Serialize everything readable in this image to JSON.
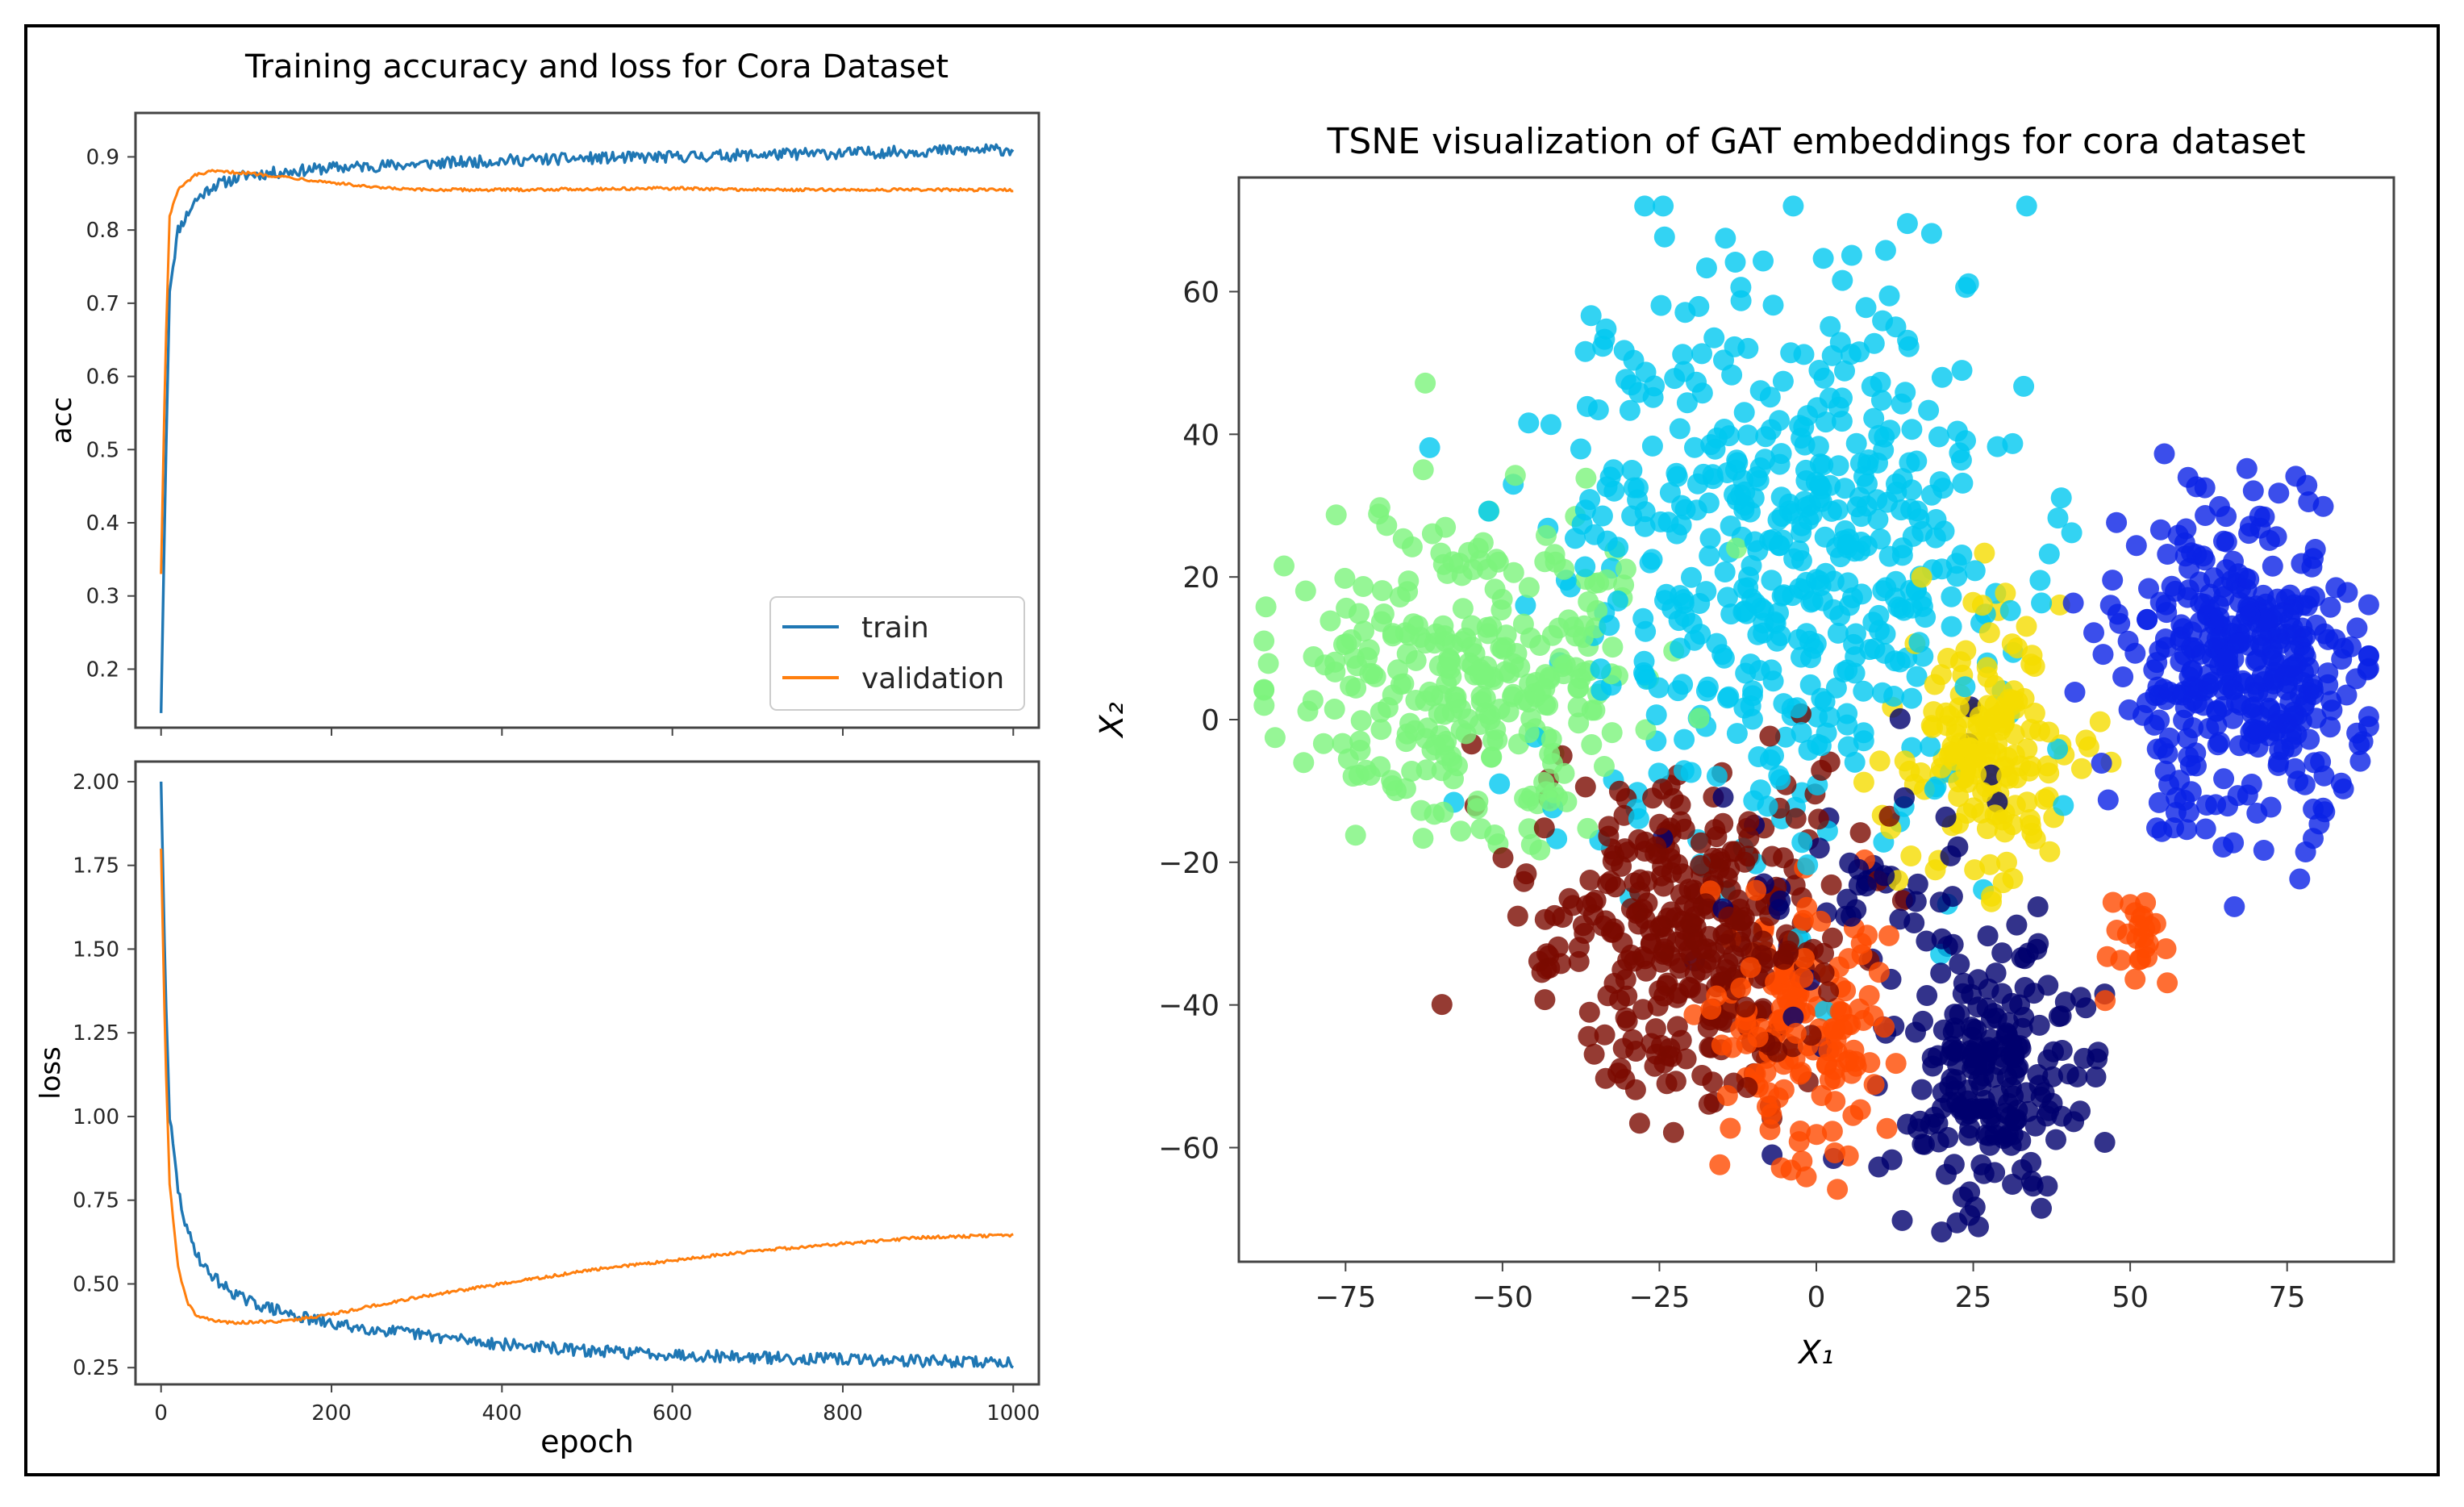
{
  "chart_data": [
    {
      "type": "line",
      "title": "Training accuracy and loss for Cora Dataset",
      "ylabel": "acc",
      "xlim": [
        -30,
        1030
      ],
      "ylim": [
        0.12,
        0.96
      ],
      "x_ticks": [
        0,
        200,
        400,
        600,
        800,
        1000
      ],
      "y_ticks": [
        "0.2",
        "0.3",
        "0.4",
        "0.5",
        "0.6",
        "0.7",
        "0.8",
        "0.9"
      ],
      "legend": "lower-right",
      "series": [
        {
          "name": "train",
          "color": "#1f77b4",
          "x": [
            0,
            5,
            10,
            20,
            40,
            60,
            100,
            150,
            200,
            300,
            400,
            500,
            600,
            700,
            800,
            900,
            1000
          ],
          "y": [
            0.14,
            0.45,
            0.72,
            0.8,
            0.84,
            0.86,
            0.875,
            0.88,
            0.885,
            0.89,
            0.895,
            0.898,
            0.9,
            0.903,
            0.905,
            0.908,
            0.91
          ]
        },
        {
          "name": "validation",
          "color": "#ff7f0e",
          "x": [
            0,
            5,
            10,
            20,
            40,
            60,
            100,
            150,
            200,
            250,
            300,
            400,
            500,
            600,
            700,
            800,
            900,
            1000
          ],
          "y": [
            0.33,
            0.62,
            0.82,
            0.855,
            0.875,
            0.88,
            0.878,
            0.872,
            0.865,
            0.858,
            0.855,
            0.855,
            0.856,
            0.857,
            0.855,
            0.855,
            0.855,
            0.855
          ]
        }
      ]
    },
    {
      "type": "line",
      "xlabel": "epoch",
      "ylabel": "loss",
      "xlim": [
        -30,
        1030
      ],
      "ylim": [
        0.2,
        2.06
      ],
      "x_ticks": [
        "0",
        "200",
        "400",
        "600",
        "800",
        "1000"
      ],
      "y_ticks": [
        "0.25",
        "0.50",
        "0.75",
        "1.00",
        "1.25",
        "1.50",
        "1.75",
        "2.00"
      ],
      "series": [
        {
          "name": "train",
          "color": "#1f77b4",
          "x": [
            0,
            5,
            10,
            20,
            30,
            50,
            75,
            100,
            150,
            200,
            300,
            400,
            500,
            600,
            700,
            800,
            900,
            1000
          ],
          "y": [
            2.0,
            1.4,
            1.0,
            0.78,
            0.66,
            0.55,
            0.49,
            0.45,
            0.41,
            0.38,
            0.35,
            0.32,
            0.3,
            0.29,
            0.28,
            0.275,
            0.27,
            0.265
          ]
        },
        {
          "name": "validation",
          "color": "#ff7f0e",
          "x": [
            0,
            5,
            10,
            20,
            30,
            40,
            60,
            80,
            100,
            150,
            200,
            300,
            400,
            500,
            600,
            700,
            800,
            900,
            1000
          ],
          "y": [
            1.8,
            1.2,
            0.8,
            0.55,
            0.45,
            0.41,
            0.39,
            0.385,
            0.385,
            0.39,
            0.41,
            0.46,
            0.5,
            0.54,
            0.57,
            0.6,
            0.62,
            0.64,
            0.645
          ]
        }
      ]
    },
    {
      "type": "scatter",
      "title": "TSNE visualization of GAT embeddings for cora dataset",
      "xlabel": "X₁",
      "ylabel": "X₂",
      "xlim": [
        -92,
        92
      ],
      "ylim": [
        -76,
        76
      ],
      "x_ticks": [
        "−75",
        "−50",
        "−25",
        "0",
        "25",
        "50",
        "75"
      ],
      "y_ticks": [
        "−60",
        "−40",
        "−20",
        "0",
        "20",
        "40",
        "60"
      ],
      "clusters": [
        {
          "color": "#00c8f0",
          "cx": -5,
          "cy": 25,
          "sx": 18,
          "sy": 20,
          "n": 520
        },
        {
          "color": "#7cf47c",
          "cx": -55,
          "cy": 5,
          "sx": 15,
          "sy": 11,
          "n": 300
        },
        {
          "color": "#0a22e6",
          "cx": 68,
          "cy": 8,
          "sx": 10,
          "sy": 12,
          "n": 380
        },
        {
          "color": "#f5dc00",
          "cx": 27,
          "cy": -4,
          "sx": 7,
          "sy": 8,
          "n": 170
        },
        {
          "color": "#7a0a00",
          "cx": -20,
          "cy": -30,
          "sx": 12,
          "sy": 12,
          "n": 330
        },
        {
          "color": "#ff4a00",
          "cx": -2,
          "cy": -44,
          "sx": 7,
          "sy": 9,
          "n": 150
        },
        {
          "color": "#ff4a00",
          "cx": 51,
          "cy": -31,
          "sx": 3,
          "sy": 3,
          "n": 25
        },
        {
          "color": "#00006e",
          "cx": 28,
          "cy": -50,
          "sx": 8,
          "sy": 9,
          "n": 200
        },
        {
          "color": "#00006e",
          "cx": 8,
          "cy": -25,
          "sx": 12,
          "sy": 14,
          "n": 60
        }
      ]
    }
  ]
}
